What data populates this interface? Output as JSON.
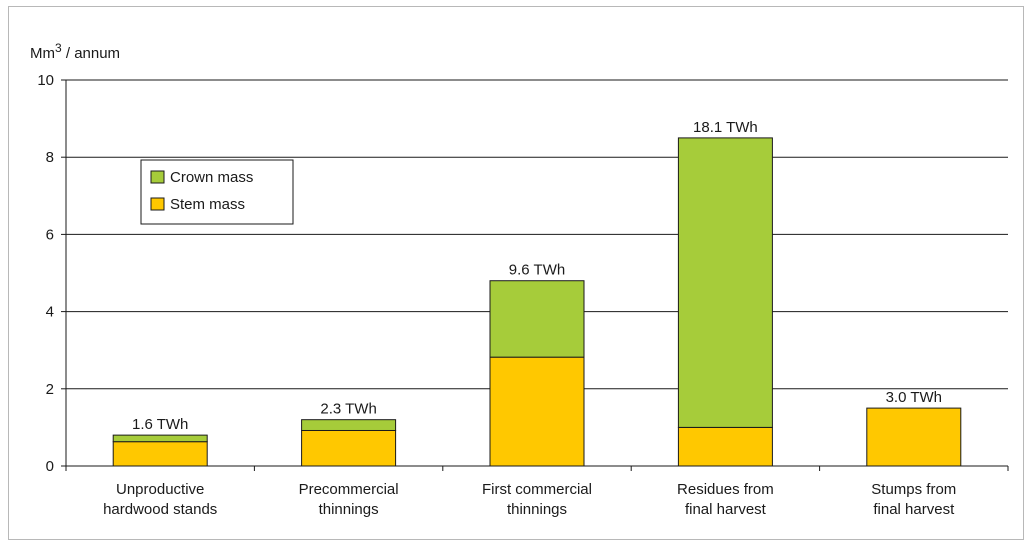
{
  "chart_data": {
    "type": "bar",
    "stacked": true,
    "ylabel_base": "Mm",
    "ylabel_sup": "3",
    "ylabel_rest": " / annum",
    "ylim": [
      0,
      10
    ],
    "yticks": [
      "0",
      "2",
      "4",
      "6",
      "8",
      "10"
    ],
    "grid": true,
    "legend_position": "top-left",
    "categories": [
      [
        "Unproductive",
        "hardwood stands"
      ],
      [
        "Precommercial",
        "thinnings"
      ],
      [
        "First commercial",
        "thinnings"
      ],
      [
        "Residues from",
        "final harvest"
      ],
      [
        "Stumps from",
        "final harvest"
      ]
    ],
    "series": [
      {
        "name": "Stem mass",
        "color": "#ffc800",
        "values": [
          0.63,
          0.92,
          2.82,
          1.0,
          1.5
        ]
      },
      {
        "name": "Crown mass",
        "color": "#a6cc3a",
        "values": [
          0.17,
          0.28,
          1.98,
          7.5,
          0.0
        ]
      }
    ],
    "bar_labels": [
      "1.6 TWh",
      "2.3 TWh",
      "9.6 TWh",
      "18.1 TWh",
      "3.0 TWh"
    ],
    "legend": [
      {
        "name": "Crown mass",
        "color": "#a6cc3a"
      },
      {
        "name": "Stem mass",
        "color": "#ffc800"
      }
    ]
  }
}
